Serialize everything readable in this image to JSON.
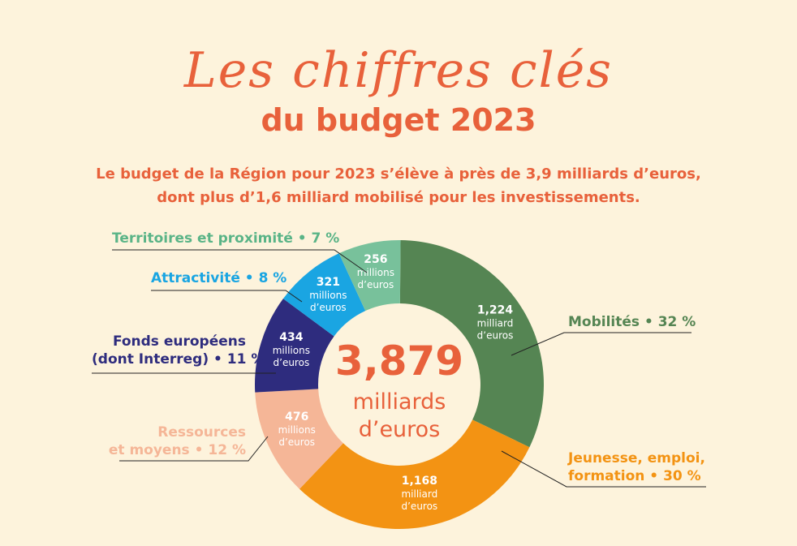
{
  "header": {
    "title_line1": "Les chiffres clés",
    "title_line2": "du budget 2023",
    "intro_line1": "Le budget de la Région pour 2023 s’élève à près de 3,9 milliards d’euros,",
    "intro_line2": "dont plus d’1,6 milliard mobilisé pour les investissements."
  },
  "center": {
    "total": "3,879",
    "unit_line1": "milliards",
    "unit_line2": "d’euros"
  },
  "chart_data": {
    "type": "pie",
    "donut": true,
    "total_label": "3,879 milliards d’euros",
    "slices": [
      {
        "name": "Mobilités",
        "percent": 32,
        "value": "1,224",
        "unit_line1": "milliard",
        "unit_line2": "d’euros",
        "legend": "Mobilités • 32 %",
        "color": "#558553",
        "text_color": "#558553"
      },
      {
        "name": "Jeunesse, emploi, formation",
        "percent": 30,
        "value": "1,168",
        "unit_line1": "milliard",
        "unit_line2": "d’euros",
        "legend_line1": "Jeunesse, emploi,",
        "legend_line2": "formation • 30 %",
        "color": "#f39313",
        "text_color": "#f39313"
      },
      {
        "name": "Ressources et moyens",
        "percent": 12,
        "value": "476",
        "unit_line1": "millions",
        "unit_line2": "d’euros",
        "legend_line1": "Ressources",
        "legend_line2": "et moyens • 12 %",
        "color": "#f5b697",
        "text_color": "#f5b697"
      },
      {
        "name": "Fonds européens (dont Interreg)",
        "percent": 11,
        "value": "434",
        "unit_line1": "millions",
        "unit_line2": "d’euros",
        "legend_line1": "Fonds européens",
        "legend_line2": "(dont Interreg) • 11 %",
        "color": "#2e2c7e",
        "text_color": "#2e2c7e"
      },
      {
        "name": "Attractivité",
        "percent": 8,
        "value": "321",
        "unit_line1": "millions",
        "unit_line2": "d’euros",
        "legend": "Attractivité • 8 %",
        "color": "#1aa5e2",
        "text_color": "#1aa5e2"
      },
      {
        "name": "Territoires et proximité",
        "percent": 7,
        "value": "256",
        "unit_line1": "millions",
        "unit_line2": "d’euros",
        "legend": "Territoires et proximité • 7 %",
        "color": "#78c19b",
        "text_color": "#5ab487"
      }
    ]
  },
  "colors": {
    "background": "#fdf3dc",
    "accent": "#e8613b"
  }
}
